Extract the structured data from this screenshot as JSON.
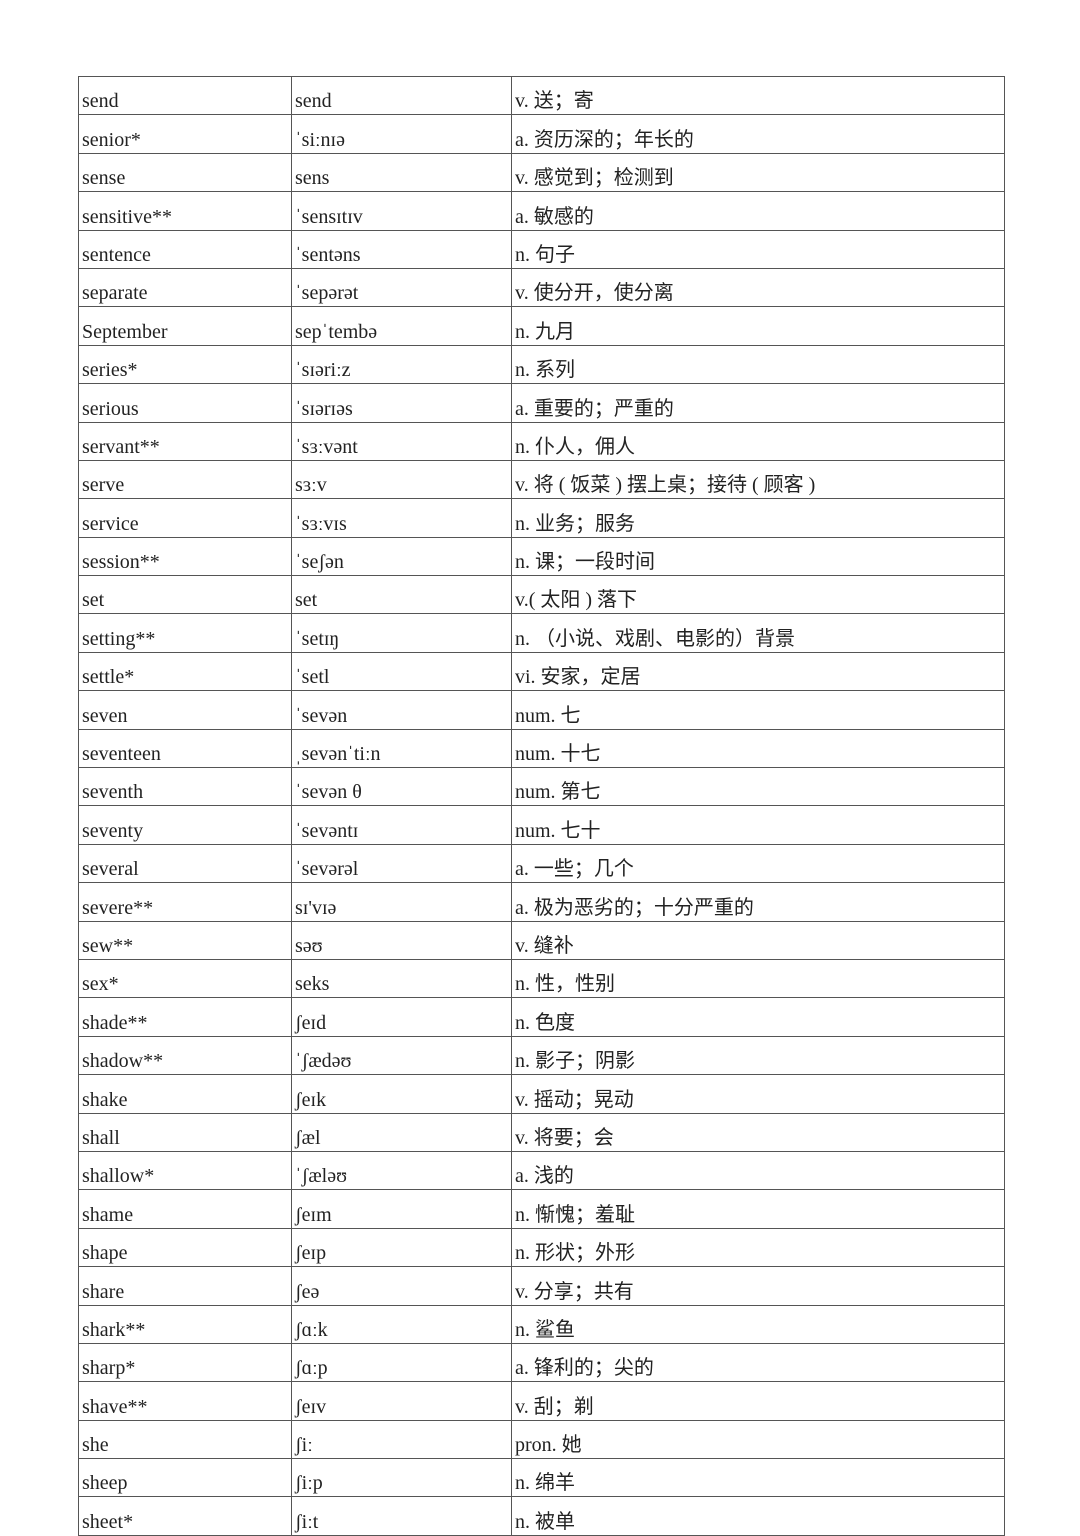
{
  "rows": [
    [
      "send",
      "send",
      "v. 送；寄"
    ],
    [
      "senior*",
      "ˈsiːnɪə",
      "a. 资历深的；年长的"
    ],
    [
      "sense",
      "sens",
      "v. 感觉到；检测到"
    ],
    [
      "sensitive**",
      "ˈsensɪtɪv",
      "a. 敏感的"
    ],
    [
      "sentence",
      "ˈsentəns",
      "n. 句子"
    ],
    [
      "separate",
      "ˈsepərət",
      "v. 使分开，使分离"
    ],
    [
      "September",
      "sepˈtembə",
      "n. 九月"
    ],
    [
      "series*",
      "ˈsɪəriːz",
      "n. 系列"
    ],
    [
      "serious",
      "ˈsɪərɪəs",
      "a. 重要的；严重的"
    ],
    [
      "servant**",
      "ˈsɜːvənt",
      "n. 仆人，佣人"
    ],
    [
      "serve",
      "sɜːv",
      "v. 将 ( 饭菜 ) 摆上桌；接待 ( 顾客 )"
    ],
    [
      "service",
      "ˈsɜːvɪs",
      "n. 业务；服务"
    ],
    [
      "session**",
      "ˈseʃən",
      "n. 课；一段时间"
    ],
    [
      "set",
      "set",
      "v.( 太阳 ) 落下"
    ],
    [
      "setting**",
      "ˈsetɪŋ",
      "n. （小说、戏剧、电影的）背景"
    ],
    [
      "settle*",
      "ˈsetl",
      "vi. 安家，定居"
    ],
    [
      "seven",
      "ˈsevən",
      "num. 七"
    ],
    [
      "seventeen",
      "ˌsevənˈtiːn",
      "num. 十七"
    ],
    [
      "seventh",
      "ˈsevən θ",
      "num. 第七"
    ],
    [
      "seventy",
      "ˈsevəntɪ",
      "num. 七十"
    ],
    [
      "several",
      "ˈsevərəl",
      "a. 一些；几个"
    ],
    [
      "severe**",
      "sɪ'vɪə",
      "a. 极为恶劣的；十分严重的"
    ],
    [
      "sew**",
      "səʊ",
      "v. 缝补"
    ],
    [
      "sex*",
      "seks",
      "n. 性，性别"
    ],
    [
      "shade**",
      "ʃeɪd",
      "n. 色度"
    ],
    [
      "shadow**",
      "ˈʃædəʊ",
      "n. 影子；阴影"
    ],
    [
      "shake",
      "ʃeɪk",
      "v. 摇动；晃动"
    ],
    [
      "shall",
      "ʃæl",
      "v. 将要；会"
    ],
    [
      "shallow*",
      "ˈʃæləʊ",
      "a. 浅的"
    ],
    [
      "shame",
      "ʃeɪm",
      "n. 惭愧；羞耻"
    ],
    [
      "shape",
      "ʃeɪp",
      "n. 形状；外形"
    ],
    [
      "share",
      "ʃeə",
      "v. 分享；共有"
    ],
    [
      "shark**",
      "ʃɑːk",
      "n. 鲨鱼"
    ],
    [
      "sharp*",
      "ʃɑːp",
      "a. 锋利的；尖的"
    ],
    [
      "shave**",
      "ʃeɪv",
      "v. 刮；剃"
    ],
    [
      "she",
      "ʃiː",
      "pron. 她"
    ],
    [
      "sheep",
      "ʃiːp",
      "n. 绵羊"
    ],
    [
      "sheet*",
      "ʃiːt",
      "n. 被单"
    ]
  ]
}
